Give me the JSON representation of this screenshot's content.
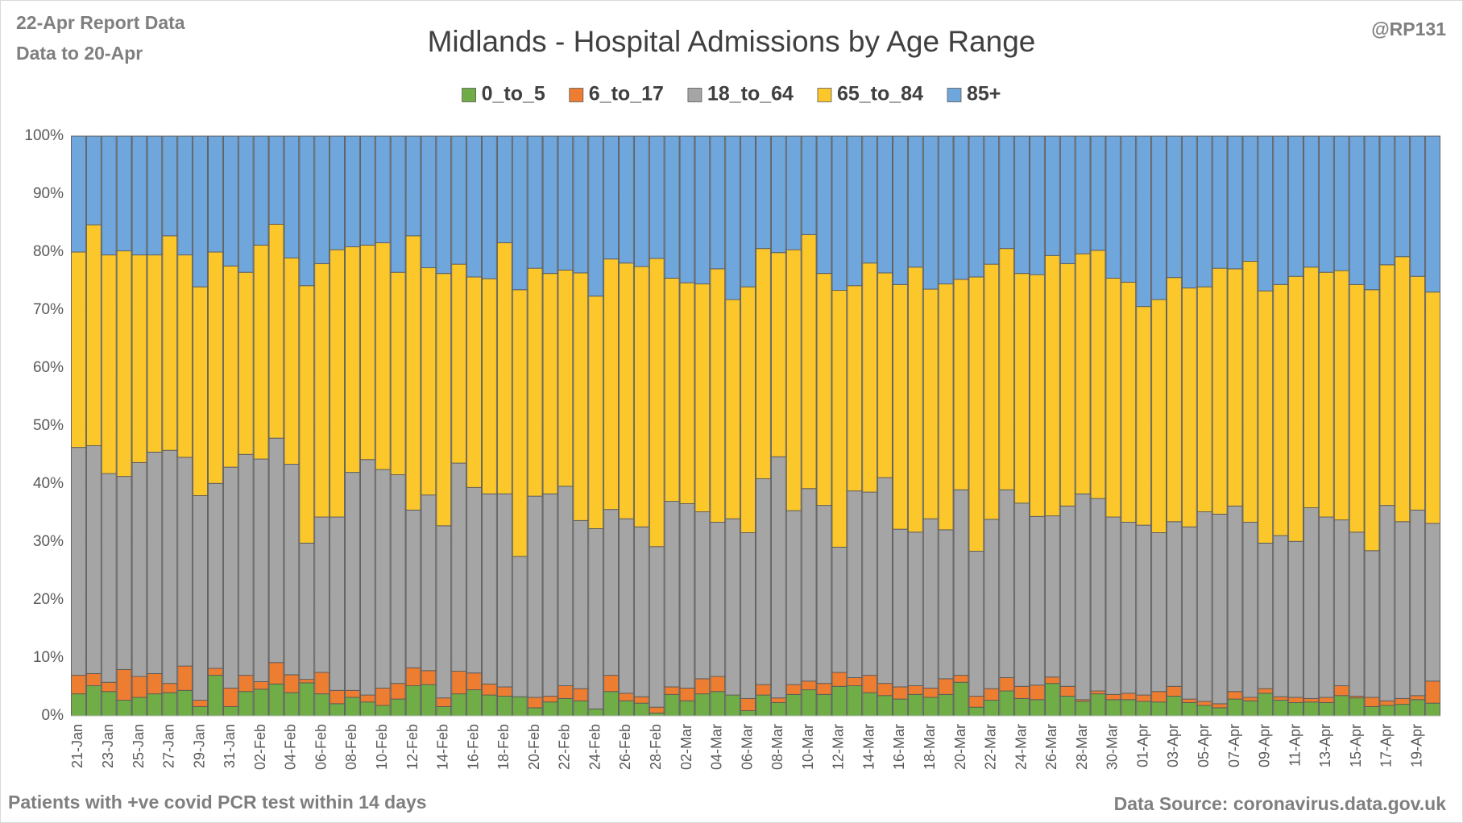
{
  "chart_data": {
    "type": "stacked_percent_bar",
    "title": "Midlands - Hospital Admissions by Age Range",
    "report_note": "22-Apr Report Data",
    "data_note": "Data to 20-Apr",
    "author": "@RP131",
    "footnote": "Patients with  +ve covid PCR test within 14 days",
    "source": "Data Source: coronavirus.data.gov.uk",
    "legend_position": "top",
    "ylim": [
      0,
      100
    ],
    "yticks": [
      {
        "value": 0,
        "label": "0%"
      },
      {
        "value": 10,
        "label": "10%"
      },
      {
        "value": 20,
        "label": "20%"
      },
      {
        "value": 30,
        "label": "30%"
      },
      {
        "value": 40,
        "label": "40%"
      },
      {
        "value": 50,
        "label": "50%"
      },
      {
        "value": 60,
        "label": "60%"
      },
      {
        "value": 70,
        "label": "70%"
      },
      {
        "value": 80,
        "label": "80%"
      },
      {
        "value": 90,
        "label": "90%"
      },
      {
        "value": 100,
        "label": "100%"
      }
    ],
    "categories": [
      "21-Jan",
      null,
      "23-Jan",
      null,
      "25-Jan",
      null,
      "27-Jan",
      null,
      "29-Jan",
      null,
      "31-Jan",
      null,
      "02-Feb",
      null,
      "04-Feb",
      null,
      "06-Feb",
      null,
      "08-Feb",
      null,
      "10-Feb",
      null,
      "12-Feb",
      null,
      "14-Feb",
      null,
      "16-Feb",
      null,
      "18-Feb",
      null,
      "20-Feb",
      null,
      "22-Feb",
      null,
      "24-Feb",
      null,
      "26-Feb",
      null,
      "28-Feb",
      null,
      "02-Mar",
      null,
      "04-Mar",
      null,
      "06-Mar",
      null,
      "08-Mar",
      null,
      "10-Mar",
      null,
      "12-Mar",
      null,
      "14-Mar",
      null,
      "16-Mar",
      null,
      "18-Mar",
      null,
      "20-Mar",
      null,
      "22-Mar",
      null,
      "24-Mar",
      null,
      "26-Mar",
      null,
      "28-Mar",
      null,
      "30-Mar",
      null,
      "01-Apr",
      null,
      "03-Apr",
      null,
      "05-Apr",
      null,
      "07-Apr",
      null,
      "09-Apr",
      null,
      "11-Apr",
      null,
      "13-Apr",
      null,
      "15-Apr",
      null,
      "17-Apr",
      null,
      "19-Apr",
      null
    ],
    "series": [
      {
        "name": "0_to_5",
        "color": "#70ad47",
        "values": [
          3.8,
          5.2,
          4.2,
          2.7,
          3.2,
          3.8,
          4,
          4.4,
          1.6,
          7,
          1.6,
          4.2,
          4.6,
          5.5,
          4,
          5.7,
          3.8,
          2.1,
          3.2,
          2.4,
          1.8,
          2.9,
          5.2,
          5.4,
          1.6,
          3.8,
          4.5,
          3.6,
          3.4,
          3.3,
          1.4,
          2.4,
          3,
          2.6,
          1.2,
          4.2,
          2.6,
          2.2,
          0.5,
          3.7,
          2.6,
          3.8,
          4.2,
          3.6,
          0.9,
          3.6,
          2.3,
          3.7,
          4.5,
          3.7,
          5.1,
          5.2,
          4,
          3.5,
          2.9,
          3.7,
          3.2,
          3.7,
          5.8,
          1.5,
          2.7,
          4.3,
          3,
          2.8,
          5.6,
          3.4,
          2.5,
          3.8,
          2.8,
          2.8,
          2.5,
          2.4,
          3.4,
          2.3,
          1.8,
          1.4,
          2.9,
          2.6,
          3.9,
          2.7,
          2.3,
          2.4,
          2.3,
          3.5,
          3.1,
          1.6,
          1.8,
          2,
          2.8,
          2.2
        ]
      },
      {
        "name": "6_to_17",
        "color": "#ed7d31",
        "values": [
          3.2,
          2.1,
          1.6,
          5.3,
          3.6,
          3.5,
          1.6,
          4.2,
          1.1,
          1.2,
          3.2,
          2.8,
          1.3,
          3.7,
          3.1,
          0.6,
          3.7,
          2.3,
          1.2,
          1.2,
          3,
          2.7,
          3.1,
          2.4,
          1.5,
          3.9,
          2.9,
          1.9,
          1.6,
          0,
          1.8,
          1,
          2.2,
          2.1,
          0,
          2.8,
          1.3,
          1.1,
          1,
          1.3,
          2.2,
          2.6,
          2.6,
          0,
          2.1,
          1.8,
          0.8,
          1.7,
          1.5,
          1.9,
          2.4,
          1.4,
          3,
          2.1,
          2.1,
          1.5,
          1.6,
          2.7,
          1.2,
          1.9,
          2,
          2.3,
          2.1,
          2.5,
          1.1,
          1.7,
          0.3,
          0.5,
          0.9,
          1.1,
          1.1,
          1.8,
          1.7,
          0.6,
          0.7,
          0.7,
          1.3,
          0.6,
          0.8,
          0.6,
          0.9,
          0.6,
          0.9,
          1.7,
          0.3,
          1.6,
          0.8,
          1,
          0.7,
          3.8
        ]
      },
      {
        "name": "18_to_64",
        "color": "#a5a5a5",
        "values": [
          39.3,
          39.3,
          36,
          33.3,
          36.9,
          38.2,
          40.2,
          36,
          35.3,
          31.9,
          38.1,
          38.1,
          38.4,
          38.7,
          36.3,
          23.5,
          26.8,
          29.9,
          37.6,
          40.6,
          37.7,
          36,
          27.2,
          30.3,
          29.7,
          35.9,
          32,
          32.8,
          33.3,
          24.2,
          34.7,
          34.9,
          34.4,
          29,
          31.1,
          28.6,
          30.1,
          29.3,
          27.7,
          32,
          31.8,
          28.8,
          26.6,
          30.4,
          28.6,
          35.5,
          41.6,
          30,
          33.2,
          30.7,
          21.6,
          32.2,
          31.6,
          35.5,
          27.2,
          26.5,
          29.2,
          25.7,
          32,
          25,
          29.2,
          32.4,
          31.6,
          29.1,
          27.8,
          31.1,
          35.5,
          33.2,
          30.6,
          29.5,
          29.3,
          27.4,
          28.4,
          29.7,
          32.7,
          32.7,
          32,
          30.2,
          25.1,
          27.8,
          26.9,
          32.9,
          31.1,
          28.6,
          28.3,
          25.3,
          33.7,
          30.5,
          32,
          27.2
        ]
      },
      {
        "name": "65_to_84",
        "color": "#fcc72b",
        "values": [
          33.7,
          38.1,
          37.7,
          38.9,
          35.8,
          34,
          37,
          34.9,
          36,
          39.9,
          34.7,
          31.4,
          36.9,
          36.9,
          35.6,
          44.4,
          43.7,
          46.1,
          38.9,
          37,
          39.1,
          34.9,
          47.3,
          39.2,
          43.5,
          34.3,
          36.3,
          37.1,
          43.3,
          46,
          39.3,
          38,
          37.3,
          42.7,
          40.1,
          43.2,
          44.1,
          44.9,
          49.7,
          38.5,
          38.1,
          39.3,
          43.7,
          37.8,
          42.4,
          39.7,
          35.2,
          45,
          43.8,
          40,
          44.3,
          35.4,
          39.5,
          35.3,
          42.2,
          45.7,
          39.6,
          42.4,
          36.3,
          47.3,
          44,
          41.6,
          39.6,
          41.7,
          44.9,
          41.8,
          41.4,
          42.8,
          41.2,
          41.4,
          37.7,
          40.2,
          42.1,
          41.2,
          38.8,
          42.4,
          40.9,
          45,
          43.5,
          43.3,
          45.7,
          41.5,
          42.2,
          43,
          42.7,
          45,
          41.5,
          45.7,
          40.3,
          39.9
        ]
      },
      {
        "name": "85+",
        "color": "#6fa6dc",
        "values": [
          20,
          15.3,
          20.5,
          19.8,
          20.5,
          20.5,
          17.2,
          20.5,
          26,
          20,
          22.4,
          23.5,
          18.8,
          15.2,
          21,
          25.8,
          22,
          19.6,
          19.1,
          18.8,
          18.4,
          23.5,
          17.2,
          22.7,
          23.7,
          22.1,
          24.3,
          24.6,
          18.4,
          26.5,
          22.8,
          23.7,
          23.1,
          23.6,
          27.6,
          21.2,
          21.9,
          22.5,
          21.1,
          24.5,
          25.3,
          25.5,
          22.9,
          28.2,
          26,
          19.4,
          20.1,
          19.6,
          17,
          23.7,
          26.6,
          25.8,
          21.9,
          23.6,
          25.6,
          22.6,
          26.4,
          25.5,
          24.7,
          24.3,
          22.1,
          19.4,
          23.7,
          23.9,
          20.6,
          22,
          20.3,
          19.7,
          24.5,
          25.2,
          29.4,
          28.2,
          24.4,
          26.2,
          26,
          22.8,
          22.9,
          21.6,
          26.7,
          25.6,
          24.2,
          22.6,
          23.5,
          23.2,
          25.6,
          26.5,
          22.2,
          20.8,
          24.2,
          26.9
        ]
      }
    ]
  }
}
